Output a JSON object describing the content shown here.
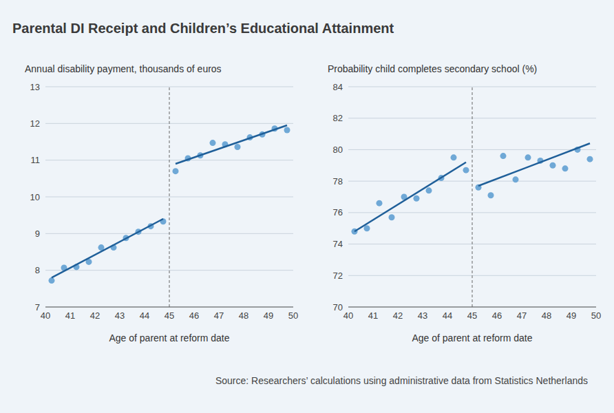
{
  "title": "Parental DI Receipt and Children’s Educational Attainment",
  "source": "Source: Researchers’ calculations using administrative data from Statistics Netherlands",
  "chart_data": [
    {
      "type": "scatter",
      "y_label": "Annual disability payment, thousands of euros",
      "x_label": "Age of parent at reform date",
      "xlim": [
        40,
        50
      ],
      "xticks": [
        40,
        41,
        42,
        43,
        44,
        45,
        46,
        47,
        48,
        49,
        50
      ],
      "ylim": [
        7,
        13
      ],
      "yticks": [
        7,
        8,
        9,
        10,
        11,
        12,
        13
      ],
      "grid": true,
      "cutoff": 45,
      "series": [
        {
          "type": "scatter",
          "marker": "circle",
          "color": "#6fa8d6",
          "x": [
            40.25,
            40.75,
            41.25,
            41.75,
            42.25,
            42.75,
            43.25,
            43.75,
            44.25,
            44.75,
            45.25,
            45.75,
            46.25,
            46.75,
            47.25,
            47.75,
            48.25,
            48.75,
            49.25,
            49.75
          ],
          "values": [
            7.72,
            8.07,
            8.09,
            8.23,
            8.62,
            8.62,
            8.88,
            9.05,
            9.2,
            9.33,
            10.7,
            11.05,
            11.13,
            11.47,
            11.43,
            11.36,
            11.62,
            11.7,
            11.86,
            11.82
          ]
        },
        {
          "type": "line",
          "line_style": "solid",
          "color": "#1f5f99",
          "x": [
            40.25,
            44.75
          ],
          "values": [
            7.8,
            9.4
          ]
        },
        {
          "type": "line",
          "line_style": "solid",
          "color": "#1f5f99",
          "x": [
            45.25,
            49.75
          ],
          "values": [
            10.9,
            11.95
          ]
        }
      ]
    },
    {
      "type": "scatter",
      "y_label": "Probability child completes secondary school (%)",
      "x_label": "Age of parent at reform date",
      "xlim": [
        40,
        50
      ],
      "xticks": [
        40,
        41,
        42,
        43,
        44,
        45,
        46,
        47,
        48,
        49,
        50
      ],
      "ylim": [
        70,
        84
      ],
      "yticks": [
        70,
        72,
        74,
        76,
        78,
        80,
        82,
        84
      ],
      "grid": true,
      "cutoff": 45,
      "series": [
        {
          "type": "scatter",
          "marker": "circle",
          "color": "#6fa8d6",
          "x": [
            40.25,
            40.75,
            41.25,
            41.75,
            42.25,
            42.75,
            43.25,
            43.75,
            44.25,
            44.75,
            45.25,
            45.75,
            46.25,
            46.75,
            47.25,
            47.75,
            48.25,
            48.75,
            49.25,
            49.75
          ],
          "values": [
            74.8,
            75.0,
            76.6,
            75.7,
            77.0,
            76.9,
            77.4,
            78.2,
            79.5,
            78.7,
            77.6,
            77.1,
            79.6,
            78.1,
            79.5,
            79.3,
            79.0,
            78.8,
            80.0,
            79.4
          ]
        },
        {
          "type": "line",
          "line_style": "solid",
          "color": "#1f5f99",
          "x": [
            40.25,
            44.75
          ],
          "values": [
            74.8,
            79.2
          ]
        },
        {
          "type": "line",
          "line_style": "solid",
          "color": "#1f5f99",
          "x": [
            45.25,
            49.75
          ],
          "values": [
            77.7,
            80.4
          ]
        }
      ]
    }
  ]
}
